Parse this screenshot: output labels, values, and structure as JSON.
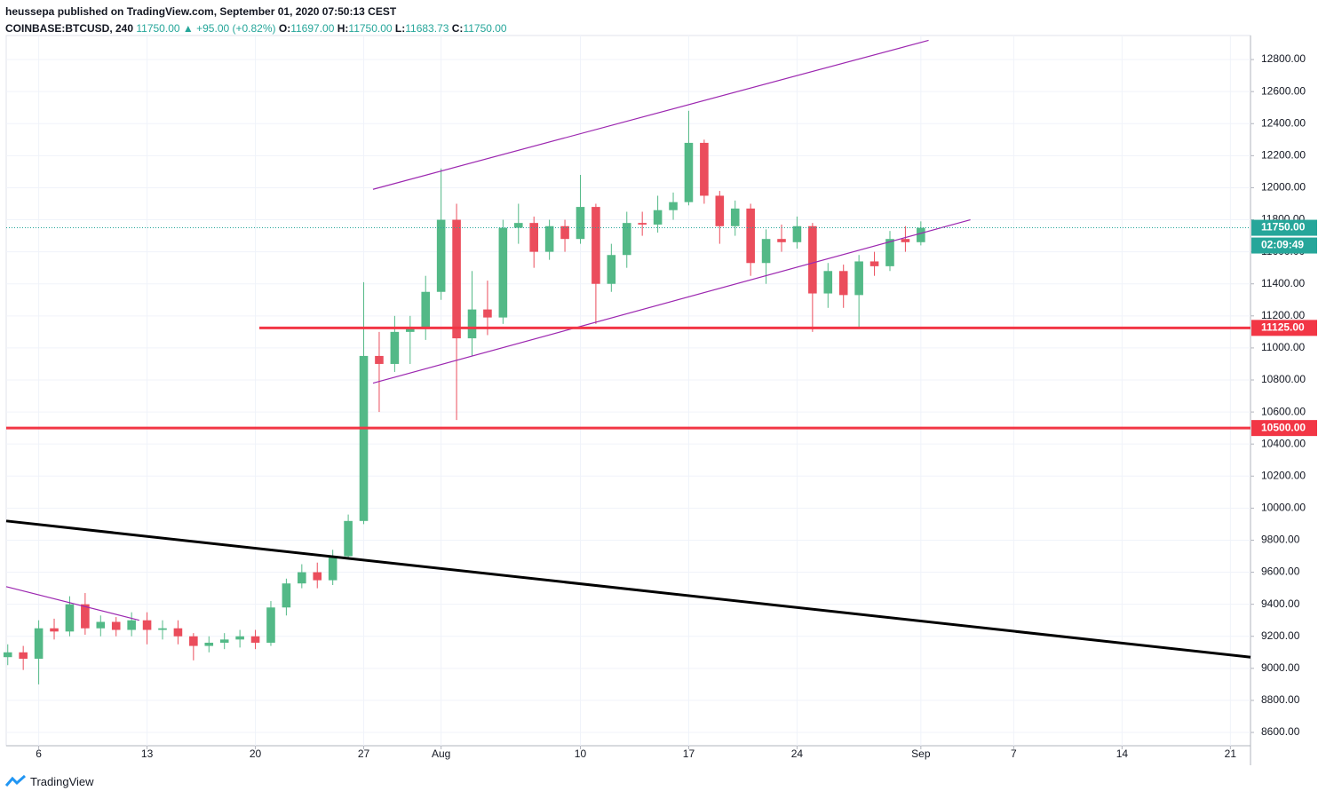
{
  "header": {
    "published": "heussepa published on TradingView.com, September 01, 2020 07:50:13 CEST",
    "symbol": "COINBASE:BTCUSD, 240",
    "price": "11750.00",
    "arrow": "▲",
    "change": "+95.00 (+0.82%)",
    "o_label": "O:",
    "o": "11697.00",
    "h_label": "H:",
    "h": "11750.00",
    "l_label": "L:",
    "l": "11683.73",
    "c_label": "C:",
    "c": "11750.00"
  },
  "footer": {
    "brand": "TradingView"
  },
  "chart_data": {
    "type": "candlestick",
    "x": [
      4,
      5,
      6,
      7,
      8,
      9,
      10,
      11,
      12,
      13,
      14,
      15,
      16,
      17,
      18,
      19,
      20,
      21,
      22,
      23,
      24,
      25,
      26,
      27,
      28,
      29,
      30,
      31,
      32,
      33,
      34,
      35,
      36,
      37,
      38,
      39,
      40,
      41,
      42,
      43,
      44,
      45,
      46,
      47,
      48,
      49,
      50,
      51,
      52,
      53,
      54,
      55,
      56,
      57,
      58,
      59,
      60,
      61,
      62,
      63
    ],
    "open": [
      9070,
      9100,
      9060,
      9250,
      9230,
      9400,
      9250,
      9290,
      9240,
      9300,
      9240,
      9250,
      9200,
      9140,
      9160,
      9180,
      9200,
      9160,
      9380,
      9530,
      9600,
      9550,
      9700,
      9920,
      10950,
      10900,
      11100,
      11120,
      11350,
      11800,
      11060,
      11240,
      11190,
      11750,
      11780,
      11600,
      11760,
      11680,
      11880,
      11400,
      11580,
      11780,
      11770,
      11860,
      11910,
      12280,
      11950,
      11760,
      11870,
      11530,
      11680,
      11660,
      11760,
      11340,
      11480,
      11330,
      11540,
      11510,
      11680,
      11660
    ],
    "high": [
      9150,
      9140,
      9300,
      9310,
      9450,
      9470,
      9330,
      9320,
      9350,
      9350,
      9300,
      9300,
      9220,
      9200,
      9220,
      9240,
      9240,
      9420,
      9560,
      9650,
      9660,
      9740,
      9960,
      11410,
      11100,
      11200,
      11200,
      11450,
      12120,
      11900,
      11480,
      11420,
      11800,
      11900,
      11820,
      11800,
      11800,
      12080,
      11900,
      11650,
      11850,
      11850,
      11950,
      11970,
      12480,
      12300,
      11980,
      11920,
      11900,
      11740,
      11770,
      11820,
      11780,
      11530,
      11520,
      11580,
      11600,
      11730,
      11760,
      11790
    ],
    "low": [
      9020,
      8990,
      8900,
      9180,
      9200,
      9210,
      9200,
      9200,
      9200,
      9150,
      9180,
      9150,
      9050,
      9100,
      9120,
      9130,
      9120,
      9140,
      9330,
      9500,
      9500,
      9520,
      9680,
      9900,
      10600,
      10850,
      10900,
      11050,
      11300,
      10550,
      10950,
      11080,
      11150,
      11650,
      11500,
      11550,
      11600,
      11650,
      11150,
      11350,
      11500,
      11700,
      11720,
      11800,
      11890,
      11900,
      11650,
      11700,
      11450,
      11400,
      11600,
      11620,
      11100,
      11250,
      11250,
      11120,
      11450,
      11480,
      11600,
      11640
    ],
    "close": [
      9100,
      9060,
      9250,
      9230,
      9400,
      9250,
      9290,
      9240,
      9300,
      9240,
      9250,
      9200,
      9140,
      9160,
      9180,
      9200,
      9160,
      9380,
      9530,
      9600,
      9550,
      9700,
      9920,
      10950,
      10900,
      11100,
      11120,
      11350,
      11800,
      11060,
      11240,
      11190,
      11750,
      11780,
      11600,
      11760,
      11680,
      11880,
      11400,
      11580,
      11780,
      11770,
      11860,
      11910,
      12280,
      11950,
      11760,
      11870,
      11530,
      11680,
      11660,
      11760,
      11340,
      11480,
      11330,
      11540,
      11510,
      11680,
      11660,
      11750
    ],
    "up_color": "#53b987",
    "down_color": "#eb4d5c",
    "xlim": [
      3.9,
      84.3
    ],
    "ylim": [
      8517,
      12950
    ],
    "xticks": [
      {
        "value": 6,
        "label": "6"
      },
      {
        "value": 13,
        "label": "13"
      },
      {
        "value": 20,
        "label": "20"
      },
      {
        "value": 27,
        "label": "27"
      },
      {
        "value": 32,
        "label": "Aug"
      },
      {
        "value": 41,
        "label": "10"
      },
      {
        "value": 48,
        "label": "17"
      },
      {
        "value": 55,
        "label": "24"
      },
      {
        "value": 63,
        "label": "Sep"
      },
      {
        "value": 69,
        "label": "7"
      },
      {
        "value": 76,
        "label": "14"
      },
      {
        "value": 83,
        "label": "21"
      }
    ],
    "yticks": [
      {
        "value": 8600,
        "label": "8600.00"
      },
      {
        "value": 8800,
        "label": "8800.00"
      },
      {
        "value": 9000,
        "label": "9000.00"
      },
      {
        "value": 9200,
        "label": "9200.00"
      },
      {
        "value": 9400,
        "label": "9400.00"
      },
      {
        "value": 9600,
        "label": "9600.00"
      },
      {
        "value": 9800,
        "label": "9800.00"
      },
      {
        "value": 10000,
        "label": "10000.00"
      },
      {
        "value": 10200,
        "label": "10200.00"
      },
      {
        "value": 10400,
        "label": "10400.00"
      },
      {
        "value": 10600,
        "label": "10600.00"
      },
      {
        "value": 10800,
        "label": "10800.00"
      },
      {
        "value": 11000,
        "label": "11000.00"
      },
      {
        "value": 11200,
        "label": "11200.00"
      },
      {
        "value": 11400,
        "label": "11400.00"
      },
      {
        "value": 11600,
        "label": "11600.00"
      },
      {
        "value": 11800,
        "label": "11800.00"
      },
      {
        "value": 12000,
        "label": "12000.00"
      },
      {
        "value": 12200,
        "label": "12200.00"
      },
      {
        "value": 12400,
        "label": "12400.00"
      },
      {
        "value": 12600,
        "label": "12600.00"
      },
      {
        "value": 12800,
        "label": "12800.00"
      }
    ],
    "grid": true,
    "levels": [
      {
        "value": 11125,
        "label": "11125.00",
        "color": "#f23645"
      },
      {
        "value": 10500,
        "label": "10500.00",
        "color": "#f23645"
      }
    ],
    "last_price": {
      "value": 11750,
      "label": "11750.00",
      "color": "#26a69a"
    },
    "countdown": "02:09:49",
    "lines": [
      {
        "x": [
          3.9,
          84.3
        ],
        "y": [
          9920,
          9070
        ],
        "color": "#000000"
      },
      {
        "x": [
          27.6,
          63.5
        ],
        "y": [
          11990,
          12920
        ],
        "color": "#9c27b0"
      },
      {
        "x": [
          27.6,
          66.2
        ],
        "y": [
          10780,
          11800
        ],
        "color": "#9c27b0"
      },
      {
        "x": [
          3.9,
          12.5
        ],
        "y": [
          9510,
          9300
        ],
        "color": "#9c27b0"
      }
    ]
  }
}
